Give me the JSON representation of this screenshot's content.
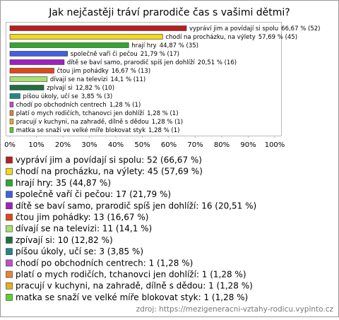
{
  "chart_data": {
    "type": "bar",
    "orientation": "horizontal",
    "title": "Jak nejčastěji tráví prarodiče čas s vašimi dětmi?",
    "categories": [
      "vypráví jim a povídají si spolu",
      "chodí na procházku, na výlety",
      "hrají hry",
      "společně vaří či pečou",
      "dítě se baví samo, prarodič spíš jen dohlíží",
      "čtou jim pohádky",
      "dívají se na televizi",
      "zpívají si",
      "píšou úkoly, učí se",
      "chodí po obchodních centrech",
      "platí o mych rodičích, tchanovci jen dohlíží",
      "pracují v kuchyni, na zahradě, dílně s dědou",
      "matka se snaží ve velké míře blokovat styk"
    ],
    "values": [
      66.67,
      57.69,
      44.87,
      21.79,
      20.51,
      16.67,
      14.1,
      12.82,
      3.85,
      1.28,
      1.28,
      1.28,
      1.28
    ],
    "value_labels": [
      "66,67 % (52)",
      "57,69 % (45)",
      "44,87 % (35)",
      "21,79 % (17)",
      "20,51 % (16)",
      "16,67 % (13)",
      "14,1 % (11)",
      "12,82 % (10)",
      "3,85 % (3)",
      "1,28 % (1)",
      "1,28 % (1)",
      "1,28 % (1)",
      "1,28 % (1)"
    ],
    "colors": [
      "#b82020",
      "#f0d820",
      "#30a830",
      "#4060e0",
      "#a020c0",
      "#e04818",
      "#a8e070",
      "#1f7040",
      "#208888",
      "#c050c8",
      "#e08838",
      "#e8b020",
      "#60d030"
    ],
    "legend_labels": [
      "vypráví jim a povídají si spolu: 52 (66,67 %)",
      "chodí na procházku, na výlety: 45 (57,69 %)",
      "hrají hry: 35 (44,87 %)",
      "společně vaří či pečou: 17 (21,79 %)",
      "dítě se baví samo, prarodič spíš jen dohlíží: 16 (20,51 %)",
      "čtou jim pohádky: 13 (16,67 %)",
      "dívají se na televizi: 11 (14,1 %)",
      "zpívají si: 10 (12,82 %)",
      "píšou úkoly, učí se: 3 (3,85 %)",
      "chodí po obchodních centrech: 1 (1,28 %)",
      "platí o mych rodičích, tchanovci jen dohlíží: 1 (1,28 %)",
      "pracují v kuchyni, na zahradě, dílně s dědou: 1 (1,28 %)",
      "matka se snaží ve velké míře blokovat styk: 1 (1,28 %)"
    ],
    "xlim": [
      0,
      100
    ],
    "xticks": [
      {
        "value": 0,
        "label": "0%"
      },
      {
        "value": 10,
        "label": "10%"
      },
      {
        "value": 20,
        "label": "20%"
      },
      {
        "value": 30,
        "label": "30%"
      },
      {
        "value": 40,
        "label": "40%"
      },
      {
        "value": 50,
        "label": "50%"
      },
      {
        "value": 60,
        "label": "60%"
      },
      {
        "value": 70,
        "label": "70%"
      },
      {
        "value": 80,
        "label": "80%"
      },
      {
        "value": 90,
        "label": "90%"
      },
      {
        "value": 100,
        "label": "100%"
      }
    ],
    "source": "zdroj: https://mezigeneracni-vztahy-rodicu.vyplnto.cz"
  }
}
